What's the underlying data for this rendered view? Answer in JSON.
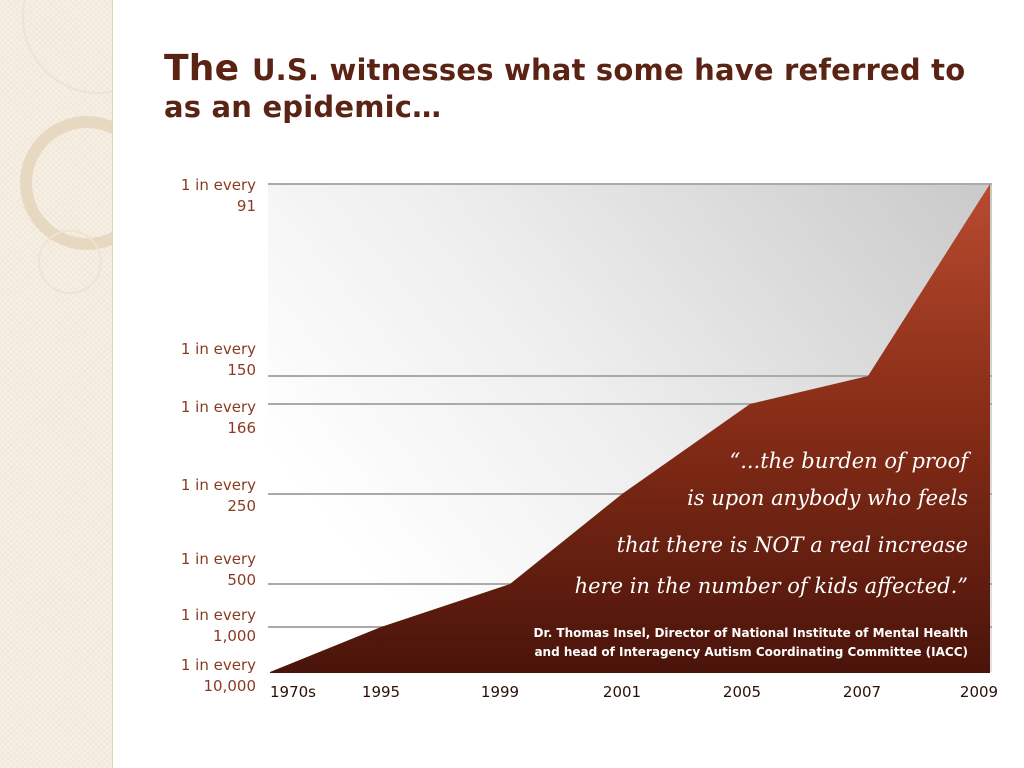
{
  "slide": {
    "title_lead": "The ",
    "title_us": "U.S.",
    "title_rest": " witnesses what some have referred to as an epidemic…"
  },
  "chart_data": {
    "type": "area",
    "title": "The U.S. witnesses what some have referred to as an epidemic…",
    "xlabel": "",
    "ylabel": "",
    "categories": [
      "1970s",
      "1995",
      "1999",
      "2001",
      "2005",
      "2007",
      "2009"
    ],
    "values": [
      "1 in every 10,000",
      "1 in every 1,000",
      "1 in every 500",
      "1 in every 250",
      "1 in every 166",
      "1 in every 150",
      "1 in every 91"
    ],
    "y_levels": [
      {
        "line1": "1 in every",
        "line2": "91"
      },
      {
        "line1": "1 in every",
        "line2": "150"
      },
      {
        "line1": "1 in every",
        "line2": "166"
      },
      {
        "line1": "1 in every",
        "line2": "250"
      },
      {
        "line1": "1 in every",
        "line2": "500"
      },
      {
        "line1": "1 in every",
        "line2": "1,000"
      },
      {
        "line1": "1 in every",
        "line2": "10,000"
      }
    ],
    "grid": true,
    "colors": {
      "area_top": "#b5492e",
      "area_bottom": "#4a150b",
      "label": "#8b3a22",
      "grid": "#aaaaaa"
    },
    "quote": {
      "lines": [
        "“...the burden of proof",
        "is upon anybody who feels",
        "that there is NOT a real increase",
        "here in the number of kids affected.”"
      ],
      "attribution": [
        "Dr. Thomas Insel, Director of National Institute of Mental Health",
        "and head of Interagency Autism Coordinating Committee (IACC)"
      ]
    }
  }
}
